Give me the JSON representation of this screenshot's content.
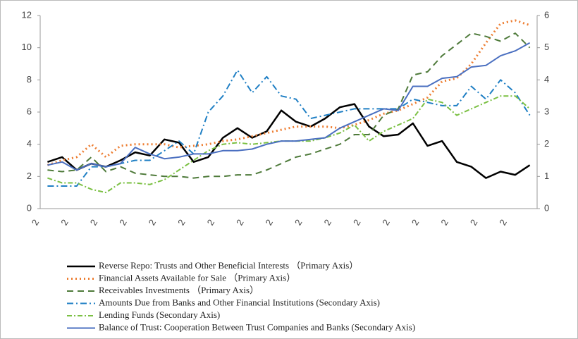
{
  "chart_data": {
    "type": "line",
    "categories": [
      "2",
      null,
      "2",
      null,
      "2",
      null,
      "2",
      null,
      "2",
      null,
      "2",
      null,
      "2",
      null,
      "2",
      null,
      "2",
      null,
      "2",
      null,
      "2",
      null,
      "2",
      null,
      "2",
      null,
      "2",
      null,
      "2",
      null,
      "2",
      null,
      "2",
      null
    ],
    "ylim": [
      0,
      12
    ],
    "yticks": [
      0,
      2,
      4,
      6,
      8,
      10,
      12
    ],
    "y2lim": [
      0,
      6
    ],
    "y2ticks": [
      0,
      1,
      2,
      3,
      4,
      5,
      6
    ],
    "series": [
      {
        "name": "Reverse Repo: Trusts and Other Beneficial Interests （Primary Axis）",
        "color": "#000000",
        "dash": "none",
        "width": 2.5,
        "values": [
          2.9,
          3.2,
          2.4,
          2.8,
          2.6,
          3.0,
          3.5,
          3.3,
          4.3,
          4.1,
          2.9,
          3.2,
          4.4,
          5.0,
          4.4,
          4.8,
          6.1,
          5.4,
          5.1,
          5.6,
          6.3,
          6.5,
          5.1,
          4.5,
          4.6,
          5.3,
          3.9,
          4.2,
          2.9,
          2.6,
          1.9,
          2.3,
          2.1,
          2.7
        ]
      },
      {
        "name": "Financial Assets Available for Sale （Primary Axis）",
        "color": "#ed7d31",
        "dash": "2,4",
        "width": 3,
        "values": [
          2.7,
          3.0,
          3.2,
          4.0,
          3.2,
          3.9,
          4.0,
          4.0,
          4.0,
          3.8,
          3.9,
          4.0,
          4.2,
          4.3,
          4.5,
          4.7,
          4.9,
          5.1,
          5.1,
          5.1,
          5.0,
          5.2,
          5.5,
          5.9,
          6.1,
          6.5,
          6.9,
          7.9,
          8.1,
          9.0,
          10.3,
          11.5,
          11.7,
          11.4
        ]
      },
      {
        "name": "Receivables Investments （Primary Axis）",
        "color": "#4e7a3a",
        "dash": "9,6",
        "width": 2,
        "values": [
          2.4,
          2.3,
          2.4,
          3.2,
          2.3,
          2.6,
          2.2,
          2.1,
          2.0,
          2.0,
          1.9,
          2.0,
          2.0,
          2.1,
          2.1,
          2.4,
          2.8,
          3.2,
          3.4,
          3.7,
          4.0,
          4.6,
          4.6,
          5.8,
          6.2,
          8.3,
          8.5,
          9.5,
          10.2,
          10.9,
          10.7,
          10.4,
          10.9,
          10.0
        ]
      },
      {
        "name": "Amounts Due from Banks and Other Financial Institutions (Secondary Axis)",
        "color": "#1f7fc4",
        "dash": "9,4,2,4",
        "width": 2,
        "axis": "y2",
        "values": [
          0.7,
          0.7,
          0.7,
          1.3,
          1.3,
          1.4,
          1.5,
          1.5,
          1.8,
          2.1,
          1.7,
          3.0,
          3.5,
          4.3,
          3.6,
          4.1,
          3.5,
          3.4,
          2.8,
          2.9,
          3.0,
          3.1,
          3.1,
          3.1,
          3.1,
          3.4,
          3.3,
          3.2,
          3.2,
          3.8,
          3.4,
          4.0,
          3.6,
          2.9
        ]
      },
      {
        "name": "Lending Funds (Secondary Axis)",
        "color": "#7bc043",
        "dash": "7,3,2,3",
        "width": 2,
        "axis": "y2",
        "values": [
          0.95,
          0.8,
          0.8,
          0.6,
          0.5,
          0.8,
          0.8,
          0.75,
          0.9,
          1.2,
          1.5,
          1.8,
          2.0,
          2.05,
          2.0,
          2.05,
          2.1,
          2.1,
          2.1,
          2.2,
          2.35,
          2.6,
          2.1,
          2.4,
          2.6,
          2.8,
          3.4,
          3.3,
          2.9,
          3.1,
          3.3,
          3.5,
          3.5,
          3.1
        ]
      },
      {
        "name": "Balance of Trust: Cooperation Between Trust Companies and Banks (Secondary Axis)",
        "color": "#4a6fc0",
        "dash": "none",
        "width": 2,
        "axis": "y2",
        "values": [
          1.35,
          1.45,
          1.2,
          1.4,
          1.3,
          1.4,
          1.9,
          1.7,
          1.55,
          1.6,
          1.7,
          1.7,
          1.8,
          1.8,
          1.85,
          2.0,
          2.1,
          2.1,
          2.15,
          2.2,
          2.5,
          2.7,
          2.9,
          3.1,
          3.05,
          3.8,
          3.8,
          4.05,
          4.1,
          4.4,
          4.45,
          4.75,
          4.9,
          5.15
        ]
      }
    ]
  }
}
